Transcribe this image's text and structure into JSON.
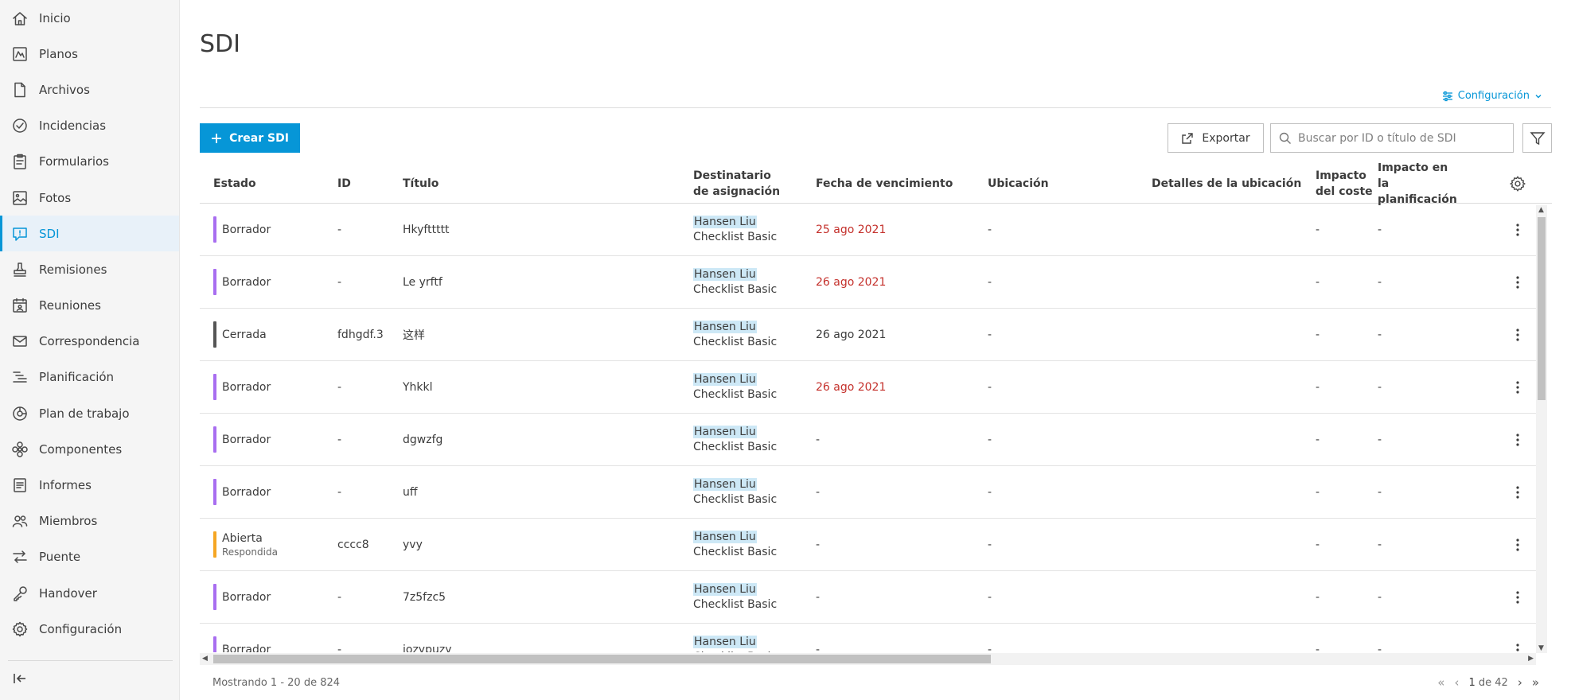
{
  "sidebar": {
    "items": [
      {
        "label": "Inicio",
        "icon": "home-icon"
      },
      {
        "label": "Planos",
        "icon": "sheets-icon"
      },
      {
        "label": "Archivos",
        "icon": "file-icon"
      },
      {
        "label": "Incidencias",
        "icon": "check-circle-icon"
      },
      {
        "label": "Formularios",
        "icon": "clipboard-icon"
      },
      {
        "label": "Fotos",
        "icon": "photo-icon"
      },
      {
        "label": "SDI",
        "icon": "rfi-icon",
        "active": true
      },
      {
        "label": "Remisiones",
        "icon": "stamp-icon"
      },
      {
        "label": "Reuniones",
        "icon": "calendar-people-icon"
      },
      {
        "label": "Correspondencia",
        "icon": "envelope-icon"
      },
      {
        "label": "Planificación",
        "icon": "schedule-icon"
      },
      {
        "label": "Plan de trabajo",
        "icon": "work-plan-icon"
      },
      {
        "label": "Componentes",
        "icon": "components-icon"
      },
      {
        "label": "Informes",
        "icon": "report-icon"
      },
      {
        "label": "Miembros",
        "icon": "members-icon"
      },
      {
        "label": "Puente",
        "icon": "bridge-icon"
      },
      {
        "label": "Handover",
        "icon": "key-icon"
      },
      {
        "label": "Configuración",
        "icon": "gear-icon"
      }
    ]
  },
  "header": {
    "title": "SDI",
    "config_label": "Configuración"
  },
  "toolbar": {
    "create_label": "Crear SDI",
    "export_label": "Exportar",
    "search_placeholder": "Buscar por ID o título de SDI"
  },
  "table": {
    "columns": {
      "estado": "Estado",
      "id": "ID",
      "titulo": "Título",
      "destinatario": "Destinatario de asignación",
      "fecha": "Fecha de vencimiento",
      "ubicacion": "Ubicación",
      "detalles": "Detalles de la ubicación",
      "impacto_coste": "Impacto del coste",
      "impacto_plan": "Impacto en la planificación"
    },
    "rows": [
      {
        "status": "Borrador",
        "status_sub": "",
        "status_color": "#a86ef0",
        "id": "-",
        "title": "Hkyfttttt",
        "assignee": "Hansen Liu",
        "assignee_sub": "Checklist Basic",
        "due": "25 ago 2021",
        "due_overdue": true,
        "location": "-",
        "location_details": "",
        "cost_impact": "-",
        "schedule_impact": "-"
      },
      {
        "status": "Borrador",
        "status_sub": "",
        "status_color": "#a86ef0",
        "id": "-",
        "title": "Le yrftf",
        "assignee": "Hansen Liu",
        "assignee_sub": "Checklist Basic",
        "due": "26 ago 2021",
        "due_overdue": true,
        "location": "-",
        "location_details": "",
        "cost_impact": "-",
        "schedule_impact": "-"
      },
      {
        "status": "Cerrada",
        "status_sub": "",
        "status_color": "#555555",
        "id": "fdhgdf.3",
        "title": "这样",
        "assignee": "Hansen Liu",
        "assignee_sub": "Checklist Basic",
        "due": "26 ago 2021",
        "due_overdue": false,
        "location": "-",
        "location_details": "",
        "cost_impact": "-",
        "schedule_impact": "-"
      },
      {
        "status": "Borrador",
        "status_sub": "",
        "status_color": "#a86ef0",
        "id": "-",
        "title": "Yhkkl",
        "assignee": "Hansen Liu",
        "assignee_sub": "Checklist Basic",
        "due": "26 ago 2021",
        "due_overdue": true,
        "location": "-",
        "location_details": "",
        "cost_impact": "-",
        "schedule_impact": "-"
      },
      {
        "status": "Borrador",
        "status_sub": "",
        "status_color": "#a86ef0",
        "id": "-",
        "title": "dgwzfg",
        "assignee": "Hansen Liu",
        "assignee_sub": "Checklist Basic",
        "due": "-",
        "due_overdue": false,
        "location": "-",
        "location_details": "",
        "cost_impact": "-",
        "schedule_impact": "-"
      },
      {
        "status": "Borrador",
        "status_sub": "",
        "status_color": "#a86ef0",
        "id": "-",
        "title": "uff",
        "assignee": "Hansen Liu",
        "assignee_sub": "Checklist Basic",
        "due": "-",
        "due_overdue": false,
        "location": "-",
        "location_details": "",
        "cost_impact": "-",
        "schedule_impact": "-"
      },
      {
        "status": "Abierta",
        "status_sub": "Respondida",
        "status_color": "#f5a623",
        "id": "cccc8",
        "title": "yvy",
        "assignee": "Hansen Liu",
        "assignee_sub": "Checklist Basic",
        "due": "-",
        "due_overdue": false,
        "location": "-",
        "location_details": "",
        "cost_impact": "-",
        "schedule_impact": "-"
      },
      {
        "status": "Borrador",
        "status_sub": "",
        "status_color": "#a86ef0",
        "id": "-",
        "title": "7z5fzc5",
        "assignee": "Hansen Liu",
        "assignee_sub": "Checklist Basic",
        "due": "-",
        "due_overdue": false,
        "location": "-",
        "location_details": "",
        "cost_impact": "-",
        "schedule_impact": "-"
      },
      {
        "status": "Borrador",
        "status_sub": "",
        "status_color": "#a86ef0",
        "id": "-",
        "title": "iozypuzy",
        "assignee": "Hansen Liu",
        "assignee_sub": "Checklist Basic",
        "due": "-",
        "due_overdue": false,
        "location": "-",
        "location_details": "",
        "cost_impact": "-",
        "schedule_impact": "-"
      }
    ]
  },
  "footer": {
    "showing": "Mostrando 1 - 20 de 824",
    "page_current": "1",
    "page_of": "de 42"
  },
  "colors": {
    "accent": "#0696d7",
    "overdue": "#c4302b",
    "draft": "#a86ef0",
    "open": "#f5a623",
    "closed": "#555555"
  }
}
